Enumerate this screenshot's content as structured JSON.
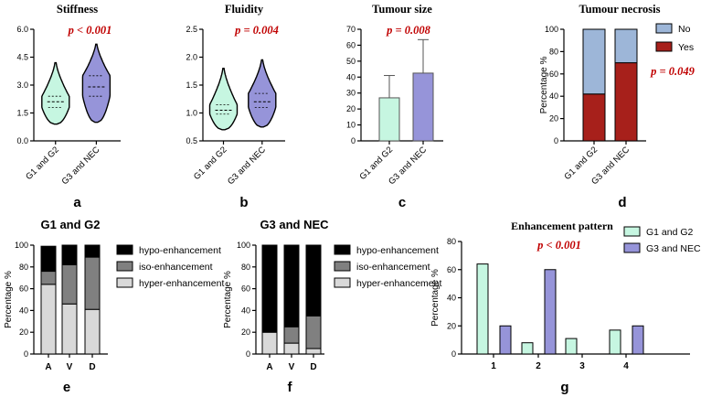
{
  "colors": {
    "g1": "#c6f6e1",
    "g3": "#9694d9",
    "no": "#9db6d8",
    "yes": "#a7201b",
    "hypo": "#000000",
    "iso": "#808080",
    "hyper": "#d9d9d9",
    "pval": "#c00000"
  },
  "chart_data": [
    {
      "id": "a",
      "type": "violin",
      "title": "Stiffness",
      "letter": "a",
      "pvalue": "p < 0.001",
      "categories": [
        "G1 and G2",
        "G3 and NEC"
      ],
      "ylim": [
        0,
        6
      ],
      "yticks": [
        "0.0",
        "1.5",
        "3.0",
        "4.5",
        "6.0"
      ],
      "series": [
        {
          "name": "G1 and G2",
          "min": 0.9,
          "q1": 1.8,
          "median": 2.1,
          "q3": 2.4,
          "max": 4.2
        },
        {
          "name": "G3 and NEC",
          "min": 1.0,
          "q1": 2.4,
          "median": 2.9,
          "q3": 3.5,
          "max": 5.2
        }
      ]
    },
    {
      "id": "b",
      "type": "violin",
      "title": "Fluidity",
      "letter": "b",
      "pvalue": "p = 0.004",
      "categories": [
        "G1 and G2",
        "G3 and NEC"
      ],
      "ylim": [
        0.5,
        2.5
      ],
      "yticks": [
        "0.5",
        "1.0",
        "1.5",
        "2.0",
        "2.5"
      ],
      "series": [
        {
          "name": "G1 and G2",
          "min": 0.7,
          "q1": 0.98,
          "median": 1.05,
          "q3": 1.15,
          "max": 1.8
        },
        {
          "name": "G3 and NEC",
          "min": 0.75,
          "q1": 1.1,
          "median": 1.2,
          "q3": 1.35,
          "max": 1.95
        }
      ]
    },
    {
      "id": "c",
      "type": "bar",
      "title": "Tumour size",
      "letter": "c",
      "pvalue": "p = 0.008",
      "categories": [
        "G1 and G2",
        "G3 and NEC"
      ],
      "ylim": [
        0,
        70
      ],
      "yticks": [
        "0",
        "10",
        "20",
        "30",
        "40",
        "50",
        "60",
        "70"
      ],
      "values": [
        27,
        42.5
      ],
      "errors": [
        41,
        63.5
      ]
    },
    {
      "id": "d",
      "type": "stacked-bar",
      "title": "Tumour necrosis",
      "letter": "d",
      "pvalue": "p = 0.049",
      "ylabel": "Percentage %",
      "categories": [
        "G1 and G2",
        "G3 and NEC"
      ],
      "ylim": [
        0,
        100
      ],
      "yticks": [
        "0",
        "20",
        "40",
        "60",
        "80",
        "100"
      ],
      "legend": [
        "No",
        "Yes"
      ],
      "series": [
        {
          "name": "Yes",
          "values": [
            42,
            70
          ]
        },
        {
          "name": "No",
          "values": [
            58,
            30
          ]
        }
      ]
    },
    {
      "id": "e",
      "type": "stacked-bar",
      "title": "G1 and G2",
      "letter": "e",
      "ylabel": "Percentage %",
      "categories": [
        "A",
        "V",
        "D"
      ],
      "ylim": [
        0,
        100
      ],
      "yticks": [
        "0",
        "20",
        "40",
        "60",
        "80",
        "100"
      ],
      "legend": [
        "hypo-enhancement",
        "iso-enhancement",
        "hyper-enhancement"
      ],
      "series": [
        {
          "name": "hyper-enhancement",
          "values": [
            64,
            46,
            41
          ]
        },
        {
          "name": "iso-enhancement",
          "values": [
            12,
            36,
            48
          ]
        },
        {
          "name": "hypo-enhancement",
          "values": [
            23,
            18,
            11
          ]
        }
      ]
    },
    {
      "id": "f",
      "type": "stacked-bar",
      "title": "G3 and NEC",
      "letter": "f",
      "ylabel": "Percentage %",
      "categories": [
        "A",
        "V",
        "D"
      ],
      "ylim": [
        0,
        100
      ],
      "yticks": [
        "0",
        "20",
        "40",
        "60",
        "80",
        "100"
      ],
      "legend": [
        "hypo-enhancement",
        "iso-enhancement",
        "hyper-enhancement"
      ],
      "series": [
        {
          "name": "hyper-enhancement",
          "values": [
            20,
            10,
            5
          ]
        },
        {
          "name": "iso-enhancement",
          "values": [
            0,
            15,
            30
          ]
        },
        {
          "name": "hypo-enhancement",
          "values": [
            80,
            75,
            65
          ]
        }
      ]
    },
    {
      "id": "g",
      "type": "grouped-bar",
      "title": "Enhancement pattern",
      "letter": "g",
      "pvalue": "p < 0.001",
      "ylabel": "Percentage %",
      "categories": [
        "1",
        "2",
        "3",
        "4"
      ],
      "ylim": [
        0,
        80
      ],
      "yticks": [
        "0",
        "20",
        "40",
        "60",
        "80"
      ],
      "legend": [
        "G1 and G2",
        "G3 and NEC"
      ],
      "series": [
        {
          "name": "G1 and G2",
          "values": [
            64,
            8,
            11,
            17
          ]
        },
        {
          "name": "G3 and NEC",
          "values": [
            20,
            60,
            0,
            20
          ]
        }
      ]
    }
  ]
}
